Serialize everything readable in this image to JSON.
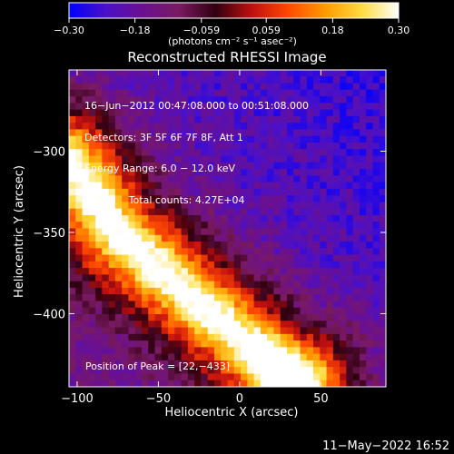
{
  "chart_data": {
    "type": "heatmap",
    "title": "Reconstructed RHESSI Image",
    "xlabel": "Heliocentric X (arcsec)",
    "ylabel": "Heliocentric Y (arcsec)",
    "xlim": [
      -105,
      90
    ],
    "ylim": [
      -445,
      -250
    ],
    "x_ticks": [
      -100,
      -50,
      0,
      50
    ],
    "x_tick_labels": [
      "−100",
      "−50",
      "0",
      "50"
    ],
    "y_ticks": [
      -300,
      -350,
      -400
    ],
    "y_tick_labels": [
      "−300",
      "−350",
      "−400"
    ],
    "colorbar": {
      "range": [
        -0.3,
        0.3
      ],
      "ticks": [
        -0.3,
        -0.18,
        -0.059,
        0.059,
        0.18,
        0.3
      ],
      "tick_labels": [
        "−0.30",
        "−0.18",
        "−0.059",
        "0.059",
        "0.18",
        "0.30"
      ],
      "unit": "(photons cm⁻² s⁻¹ asec⁻²)",
      "colormap": [
        "#0000ff",
        "#4b10c8",
        "#6a1090",
        "#7a1a60",
        "#300010",
        "#c01010",
        "#ff4a00",
        "#ff9a00",
        "#ffdc40",
        "#ffffff"
      ]
    },
    "annotation_lines": [
      "16−Jun−2012 00:47:08.000 to 00:51:08.000",
      "Detectors: 3F 5F 6F 7F 8F, Att 1",
      "Energy Range: 6.0 − 12.0 keV",
      "Clean     Total counts: 4.27E+04"
    ],
    "peak_label": "Position of Peak = [22,−433]",
    "peak": [
      22,
      -433
    ],
    "bright_ridge": [
      [
        -105,
        -305
      ],
      [
        -75,
        -350
      ],
      [
        -35,
        -385
      ],
      [
        -5,
        -410
      ],
      [
        22,
        -433
      ],
      [
        40,
        -440
      ]
    ],
    "footer_timestamp": "11−May−2022 16:52"
  }
}
